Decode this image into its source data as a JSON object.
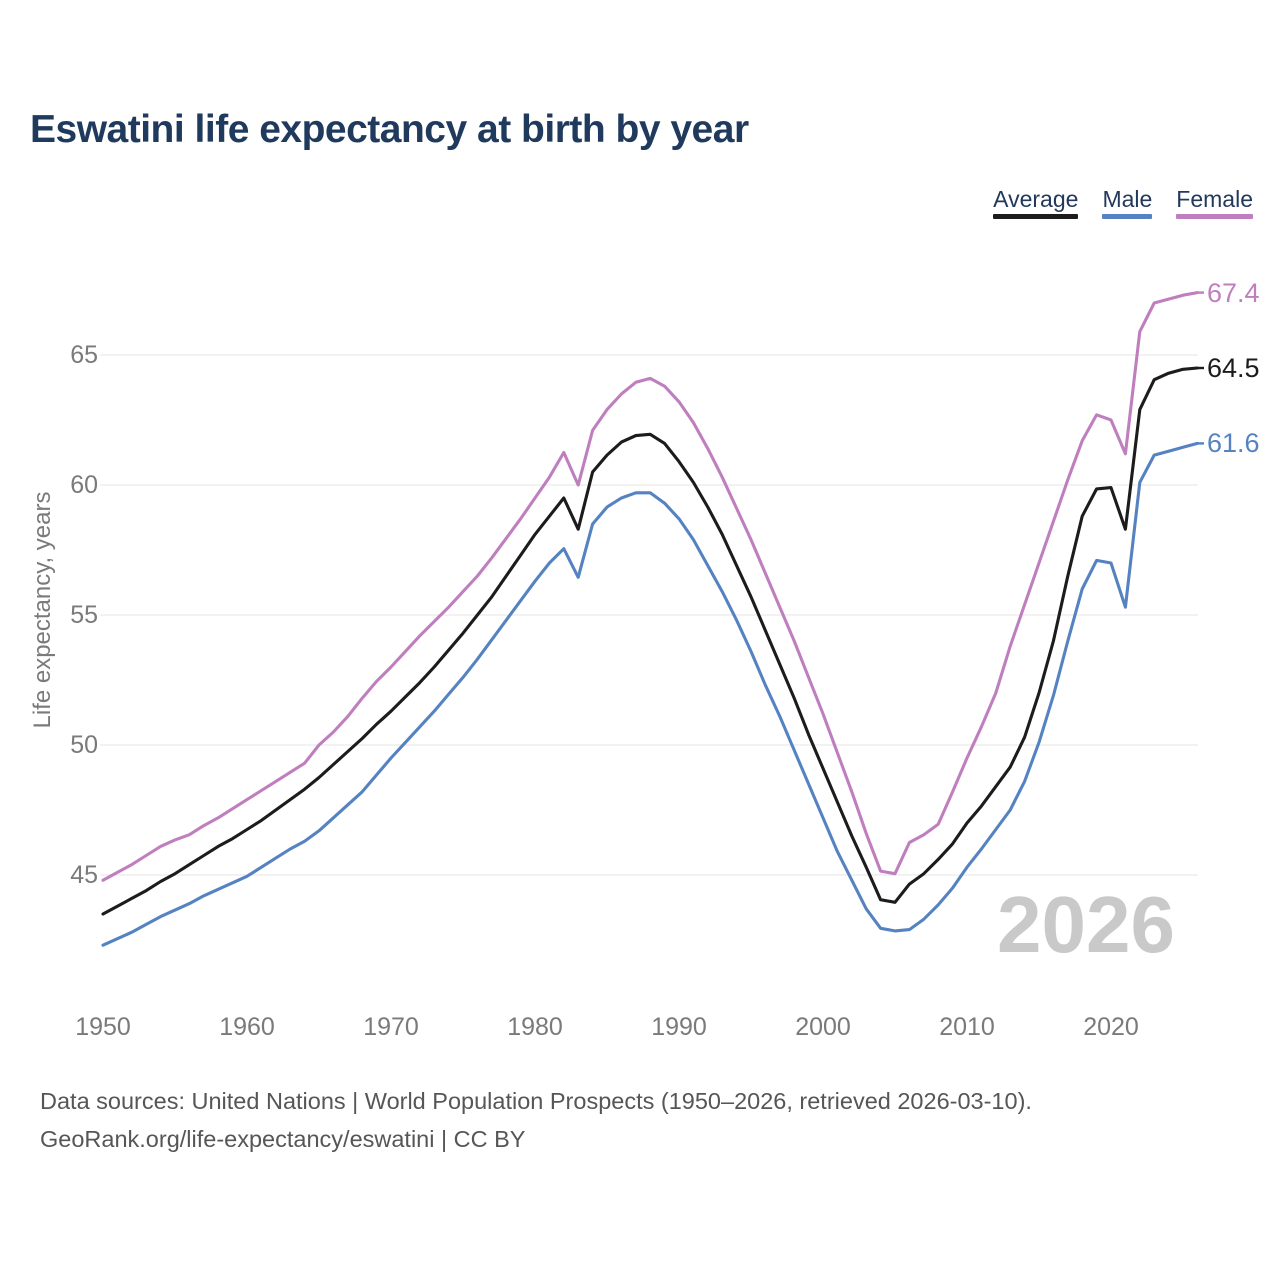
{
  "title": "Eswatini life expectancy at birth by year",
  "watermark": "2026",
  "legend": {
    "items": [
      {
        "label": "Average",
        "color": "#1c1c1c"
      },
      {
        "label": "Male",
        "color": "#5583c1"
      },
      {
        "label": "Female",
        "color": "#bf7fbf"
      }
    ]
  },
  "footer": {
    "line1": "Data sources: United Nations | World Population Prospects (1950–2026, retrieved 2026-03-10).",
    "line2": "GeoRank.org/life-expectancy/eswatini | CC BY"
  },
  "chart_data": {
    "type": "line",
    "title": "Eswatini life expectancy at birth by year",
    "xlabel": "",
    "ylabel": "Life expectancy, years",
    "x_range": [
      1950,
      2026
    ],
    "ylim": [
      42,
      68
    ],
    "y_ticks": [
      45,
      50,
      55,
      60,
      65
    ],
    "x_ticks": [
      1950,
      1960,
      1970,
      1980,
      1990,
      2000,
      2010,
      2020
    ],
    "grid": "horizontal",
    "legend_position": "top-right",
    "colors": {
      "grid": "#e9e9e9",
      "axis_text": "#7a7a7a"
    },
    "series": [
      {
        "name": "Average",
        "color": "#1c1c1c",
        "end_label": "64.5",
        "values": [
          43.5,
          43.8,
          44.1,
          44.4,
          44.75,
          45.05,
          45.4,
          45.75,
          46.1,
          46.4,
          46.75,
          47.1,
          47.5,
          47.9,
          48.3,
          48.75,
          49.25,
          49.75,
          50.25,
          50.8,
          51.3,
          51.85,
          52.4,
          53.0,
          53.65,
          54.3,
          55.0,
          55.7,
          56.5,
          57.3,
          58.1,
          58.8,
          59.5,
          58.3,
          60.5,
          61.15,
          61.65,
          61.9,
          61.95,
          61.6,
          60.9,
          60.1,
          59.15,
          58.1,
          56.9,
          55.7,
          54.4,
          53.1,
          51.8,
          50.4,
          49.1,
          47.8,
          46.5,
          45.3,
          44.05,
          43.95,
          44.65,
          45.05,
          45.6,
          46.2,
          47.0,
          47.65,
          48.4,
          49.15,
          50.3,
          52.0,
          54.0,
          56.5,
          58.8,
          59.85,
          59.9,
          58.3,
          62.9,
          64.05,
          64.3,
          64.45,
          64.5
        ]
      },
      {
        "name": "Male",
        "color": "#5583c1",
        "end_label": "61.6",
        "values": [
          42.3,
          42.55,
          42.8,
          43.1,
          43.4,
          43.65,
          43.9,
          44.2,
          44.45,
          44.7,
          44.95,
          45.3,
          45.65,
          46.0,
          46.3,
          46.7,
          47.2,
          47.7,
          48.2,
          48.85,
          49.5,
          50.1,
          50.7,
          51.3,
          51.95,
          52.6,
          53.3,
          54.05,
          54.8,
          55.55,
          56.3,
          57.0,
          57.55,
          56.45,
          58.5,
          59.15,
          59.5,
          59.7,
          59.7,
          59.3,
          58.7,
          57.9,
          56.9,
          55.9,
          54.8,
          53.6,
          52.3,
          51.1,
          49.8,
          48.5,
          47.2,
          45.9,
          44.8,
          43.7,
          42.95,
          42.85,
          42.9,
          43.3,
          43.85,
          44.5,
          45.3,
          46.0,
          46.75,
          47.5,
          48.6,
          50.1,
          51.9,
          54.0,
          56.0,
          57.1,
          57.0,
          55.3,
          60.1,
          61.15,
          61.3,
          61.45,
          61.6
        ]
      },
      {
        "name": "Female",
        "color": "#bf7fbf",
        "end_label": "67.4",
        "values": [
          44.8,
          45.1,
          45.4,
          45.75,
          46.1,
          46.35,
          46.55,
          46.9,
          47.2,
          47.55,
          47.9,
          48.25,
          48.6,
          48.95,
          49.3,
          50.0,
          50.5,
          51.1,
          51.8,
          52.45,
          53.0,
          53.6,
          54.2,
          54.75,
          55.3,
          55.9,
          56.5,
          57.2,
          57.95,
          58.7,
          59.5,
          60.3,
          61.25,
          60.0,
          62.1,
          62.9,
          63.5,
          63.95,
          64.1,
          63.8,
          63.2,
          62.4,
          61.4,
          60.3,
          59.1,
          57.9,
          56.6,
          55.3,
          54.0,
          52.6,
          51.2,
          49.7,
          48.2,
          46.6,
          45.15,
          45.05,
          46.25,
          46.55,
          46.95,
          48.2,
          49.5,
          50.7,
          52.0,
          53.8,
          55.4,
          57.0,
          58.6,
          60.2,
          61.7,
          62.7,
          62.5,
          61.2,
          65.9,
          67.0,
          67.15,
          67.3,
          67.4
        ]
      }
    ]
  }
}
